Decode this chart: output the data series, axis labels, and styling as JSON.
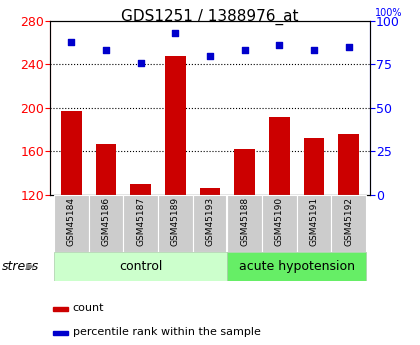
{
  "title": "GDS1251 / 1388976_at",
  "samples": [
    "GSM45184",
    "GSM45186",
    "GSM45187",
    "GSM45189",
    "GSM45193",
    "GSM45188",
    "GSM45190",
    "GSM45191",
    "GSM45192"
  ],
  "counts": [
    197,
    167,
    130,
    248,
    126,
    162,
    192,
    172,
    176
  ],
  "percentiles": [
    88,
    83,
    76,
    93,
    80,
    83,
    86,
    83,
    85
  ],
  "n_control": 5,
  "n_acute": 4,
  "ylim_left": [
    120,
    280
  ],
  "ylim_right": [
    0,
    100
  ],
  "yticks_left": [
    120,
    160,
    200,
    240,
    280
  ],
  "yticks_right": [
    0,
    25,
    50,
    75,
    100
  ],
  "bar_color": "#cc0000",
  "dot_color": "#0000cc",
  "control_bg": "#ccffcc",
  "acute_bg": "#66ee66",
  "ticklabel_bg": "#cccccc",
  "stress_label": "stress",
  "stress_arrow": "►",
  "control_label": "control",
  "acute_label": "acute hypotension",
  "legend_count": "count",
  "legend_pct": "percentile rank within the sample",
  "title_fontsize": 11,
  "axis_fontsize": 9,
  "tick_fontsize": 8,
  "group_fontsize": 9,
  "legend_fontsize": 8,
  "stress_fontsize": 9,
  "pct_100_label": "100%"
}
